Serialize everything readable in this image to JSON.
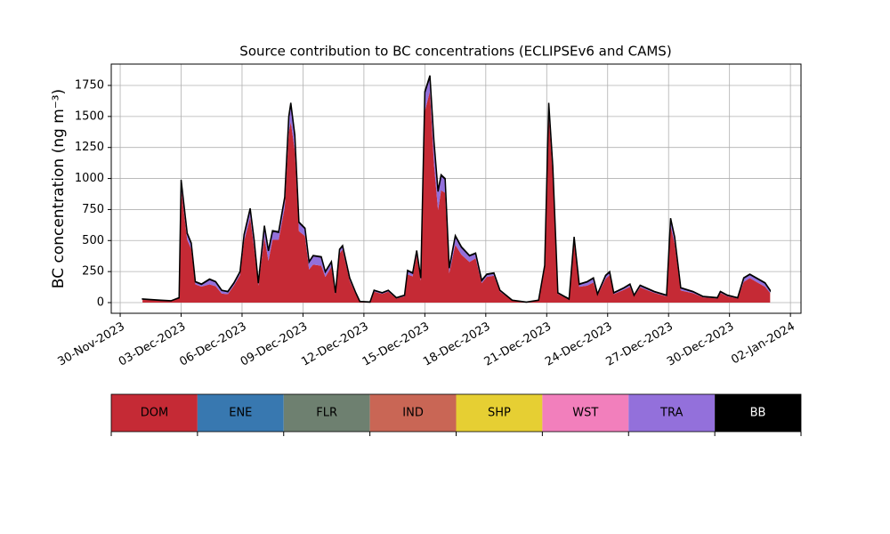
{
  "chart_data": {
    "type": "stacked_area",
    "title": "Source contribution to BC concentrations (ECLIPSEv6 and CAMS)",
    "y_label": "BC concentration (ng m⁻³)",
    "x": [
      1.1,
      1.5,
      2.0,
      2.5,
      2.9,
      3.0,
      3.3,
      3.5,
      3.7,
      4.0,
      4.4,
      4.7,
      5.0,
      5.3,
      5.6,
      5.9,
      6.1,
      6.4,
      6.6,
      6.8,
      7.1,
      7.3,
      7.5,
      7.8,
      8.1,
      8.3,
      8.4,
      8.6,
      8.8,
      9.1,
      9.3,
      9.5,
      9.9,
      10.1,
      10.4,
      10.6,
      10.8,
      10.95,
      11.3,
      11.6,
      11.8,
      12.3,
      12.5,
      12.9,
      13.2,
      13.6,
      14.0,
      14.15,
      14.4,
      14.6,
      14.8,
      15.0,
      15.25,
      15.45,
      15.65,
      15.8,
      16.0,
      16.2,
      16.5,
      16.8,
      17.2,
      17.5,
      17.8,
      18.05,
      18.4,
      18.7,
      19.3,
      20.0,
      20.6,
      20.9,
      21.1,
      21.3,
      21.55,
      22.1,
      22.35,
      22.6,
      23.0,
      23.3,
      23.5,
      23.9,
      24.1,
      24.3,
      24.8,
      25.1,
      25.3,
      25.6,
      26.3,
      26.9,
      27.1,
      27.3,
      27.6,
      28.2,
      28.7,
      29.4,
      29.55,
      29.9,
      30.4,
      30.7,
      31.0,
      31.75,
      32.0
    ],
    "series": [
      {
        "name": "DOM",
        "color": "#c52a35",
        "values": [
          25,
          21,
          16,
          13,
          34,
          925,
          506,
          431,
          147,
          129,
          147,
          132,
          73,
          68,
          137,
          222,
          496,
          685,
          436,
          137,
          526,
          336,
          506,
          506,
          765,
          1374,
          1454,
          1224,
          576,
          536,
          267,
          307,
          297,
          207,
          287,
          68,
          397,
          427,
          177,
          68,
          7,
          3,
          88,
          70,
          88,
          33,
          50,
          227,
          212,
          382,
          177,
          1543,
          1703,
          1114,
          745,
          905,
          885,
          237,
          466,
          386,
          327,
          357,
          157,
          207,
          217,
          88,
          17,
          3,
          17,
          277,
          1524,
          1035,
          70,
          25,
          486,
          127,
          137,
          162,
          58,
          192,
          222,
          68,
          103,
          127,
          50,
          123,
          78,
          50,
          616,
          476,
          98,
          76,
          42,
          33,
          78,
          50,
          33,
          167,
          197,
          127,
          78
        ]
      },
      {
        "name": "TRA",
        "color": "#9370db",
        "values": [
          3,
          2,
          2,
          1,
          4,
          60,
          50,
          45,
          20,
          18,
          40,
          35,
          25,
          20,
          20,
          25,
          50,
          70,
          60,
          20,
          90,
          80,
          70,
          60,
          80,
          120,
          150,
          120,
          70,
          60,
          60,
          70,
          70,
          40,
          40,
          10,
          30,
          30,
          20,
          10,
          2,
          1,
          10,
          8,
          10,
          5,
          8,
          30,
          25,
          35,
          20,
          150,
          120,
          180,
          150,
          120,
          110,
          40,
          70,
          60,
          50,
          40,
          20,
          20,
          20,
          10,
          2,
          1,
          2,
          20,
          80,
          60,
          8,
          3,
          40,
          20,
          30,
          35,
          10,
          25,
          25,
          10,
          15,
          20,
          8,
          15,
          10,
          8,
          60,
          50,
          20,
          12,
          6,
          5,
          10,
          8,
          5,
          30,
          30,
          30,
          20
        ]
      },
      {
        "name": "BB",
        "color": "#000000",
        "values": [
          2,
          2,
          2,
          1,
          2,
          5,
          4,
          4,
          3,
          3,
          3,
          3,
          2,
          2,
          3,
          3,
          4,
          5,
          4,
          3,
          4,
          4,
          4,
          4,
          5,
          6,
          6,
          6,
          4,
          4,
          3,
          3,
          3,
          3,
          3,
          2,
          3,
          3,
          3,
          2,
          1,
          1,
          2,
          2,
          2,
          2,
          2,
          3,
          3,
          3,
          3,
          7,
          7,
          6,
          5,
          5,
          5,
          3,
          4,
          4,
          3,
          3,
          3,
          3,
          3,
          2,
          1,
          1,
          1,
          3,
          6,
          5,
          2,
          2,
          4,
          3,
          3,
          3,
          2,
          3,
          3,
          2,
          2,
          3,
          2,
          2,
          2,
          2,
          4,
          4,
          2,
          2,
          2,
          2,
          2,
          2,
          2,
          3,
          3,
          3,
          2
        ]
      }
    ],
    "legend_entries": [
      {
        "name": "DOM",
        "color": "#c52a35"
      },
      {
        "name": "ENE",
        "color": "#3878b0"
      },
      {
        "name": "FLR",
        "color": "#6e8070"
      },
      {
        "name": "IND",
        "color": "#c96655"
      },
      {
        "name": "SHP",
        "color": "#e6cf33"
      },
      {
        "name": "WST",
        "color": "#f27fbc"
      },
      {
        "name": "TRA",
        "color": "#9370db"
      },
      {
        "name": "BB",
        "color": "#000000"
      }
    ],
    "xlim": [
      -0.44,
      33.52
    ],
    "xticks": [
      {
        "value": 0,
        "label": "30-Nov-2023"
      },
      {
        "value": 3,
        "label": "03-Dec-2023"
      },
      {
        "value": 6,
        "label": "06-Dec-2023"
      },
      {
        "value": 9,
        "label": "09-Dec-2023"
      },
      {
        "value": 12,
        "label": "12-Dec-2023"
      },
      {
        "value": 15,
        "label": "15-Dec-2023"
      },
      {
        "value": 18,
        "label": "18-Dec-2023"
      },
      {
        "value": 21,
        "label": "21-Dec-2023"
      },
      {
        "value": 24,
        "label": "24-Dec-2023"
      },
      {
        "value": 27,
        "label": "27-Dec-2023"
      },
      {
        "value": 30,
        "label": "30-Dec-2023"
      },
      {
        "value": 33,
        "label": "02-Jan-2024"
      }
    ],
    "ylim": [
      -86,
      1922
    ],
    "yticks": [
      0,
      250,
      500,
      750,
      1000,
      1250,
      1500,
      1750
    ],
    "grid": true
  }
}
